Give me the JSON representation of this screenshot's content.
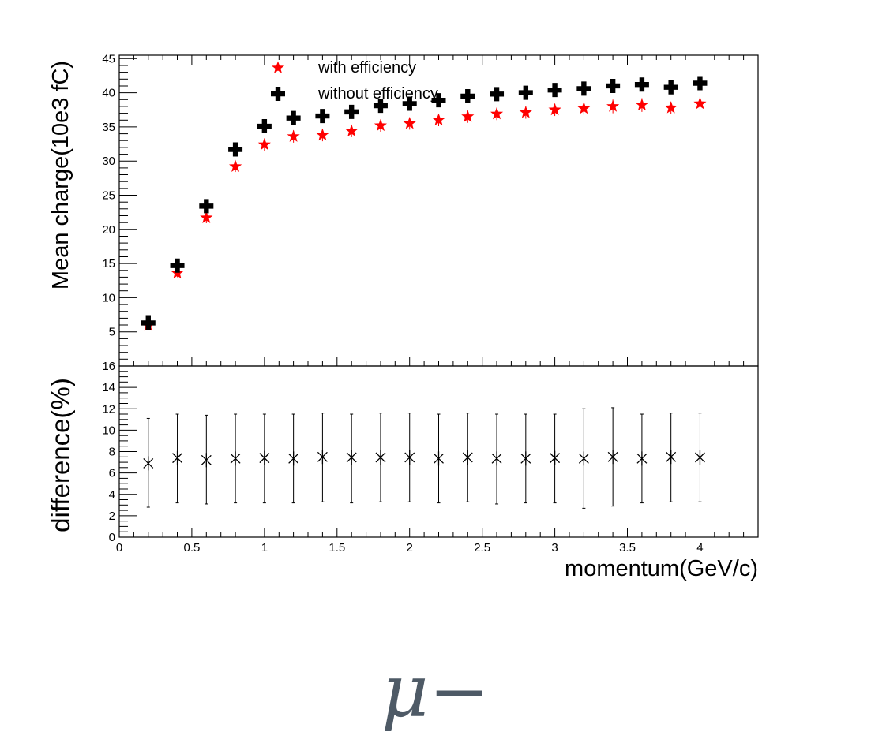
{
  "chart_data": [
    {
      "type": "scatter",
      "ylabel": "Mean charge(10e3 fC)",
      "xlim": [
        0,
        4.4
      ],
      "ylim": [
        0,
        45.5
      ],
      "yticks": [
        5,
        10,
        15,
        20,
        25,
        30,
        35,
        40,
        45
      ],
      "legend": {
        "placement": "top-center"
      },
      "series": [
        {
          "name": "with efficiency",
          "color": "#ff0000",
          "marker": "star",
          "x": [
            0.2,
            0.4,
            0.6,
            0.8,
            1.0,
            1.2,
            1.4,
            1.6,
            1.8,
            2.0,
            2.2,
            2.4,
            2.6,
            2.8,
            3.0,
            3.2,
            3.4,
            3.6,
            3.8,
            4.0
          ],
          "y": [
            5.9,
            13.6,
            21.7,
            29.2,
            32.4,
            33.6,
            33.8,
            34.4,
            35.2,
            35.5,
            36.0,
            36.5,
            36.9,
            37.1,
            37.5,
            37.7,
            38.0,
            38.2,
            37.8,
            38.4
          ],
          "yerr": [
            0.4,
            0.6,
            0.8,
            0.8,
            0.9,
            0.9,
            0.9,
            0.9,
            0.9,
            0.9,
            0.9,
            0.9,
            0.9,
            0.9,
            0.9,
            0.9,
            1.0,
            1.0,
            0.9,
            1.0
          ]
        },
        {
          "name": "without efficiency",
          "color": "#000000",
          "marker": "cross",
          "x": [
            0.2,
            0.4,
            0.6,
            0.8,
            1.0,
            1.2,
            1.4,
            1.6,
            1.8,
            2.0,
            2.2,
            2.4,
            2.6,
            2.8,
            3.0,
            3.2,
            3.4,
            3.6,
            3.8,
            4.0
          ],
          "y": [
            6.3,
            14.7,
            23.4,
            31.7,
            35.1,
            36.3,
            36.6,
            37.2,
            38.1,
            38.4,
            38.9,
            39.5,
            39.8,
            40.0,
            40.4,
            40.6,
            41.0,
            41.2,
            40.8,
            41.4
          ],
          "yerr": [
            0.4,
            0.6,
            0.8,
            0.8,
            0.9,
            0.9,
            0.9,
            0.9,
            0.9,
            0.9,
            0.9,
            0.9,
            0.9,
            0.9,
            0.9,
            0.9,
            1.0,
            1.0,
            0.9,
            1.0
          ]
        }
      ]
    },
    {
      "type": "scatter",
      "xlabel": "momentum(GeV/c)",
      "ylabel": "difference(%)",
      "xlim": [
        0,
        4.4
      ],
      "ylim": [
        0,
        16
      ],
      "xticks": [
        0,
        0.5,
        1,
        1.5,
        2,
        2.5,
        3,
        3.5,
        4
      ],
      "xtick_labels": [
        "0",
        "0.5",
        "1",
        "1.5",
        "2",
        "2.5",
        "3",
        "3.5",
        "4"
      ],
      "yticks": [
        0,
        2,
        4,
        6,
        8,
        10,
        12,
        14,
        16
      ],
      "series": [
        {
          "color": "#000000",
          "marker": "asterisk",
          "x": [
            0.2,
            0.4,
            0.6,
            0.8,
            1.0,
            1.2,
            1.4,
            1.6,
            1.8,
            2.0,
            2.2,
            2.4,
            2.6,
            2.8,
            3.0,
            3.2,
            3.4,
            3.6,
            3.8,
            4.0
          ],
          "y": [
            6.9,
            7.4,
            7.2,
            7.35,
            7.4,
            7.35,
            7.5,
            7.45,
            7.45,
            7.45,
            7.35,
            7.45,
            7.35,
            7.35,
            7.4,
            7.35,
            7.5,
            7.35,
            7.5,
            7.45
          ],
          "ylow": [
            2.8,
            3.2,
            3.1,
            3.2,
            3.2,
            3.2,
            3.3,
            3.2,
            3.3,
            3.3,
            3.2,
            3.3,
            3.1,
            3.2,
            3.2,
            2.7,
            2.9,
            3.2,
            3.3,
            3.3
          ],
          "yhigh": [
            11.1,
            11.5,
            11.4,
            11.5,
            11.5,
            11.5,
            11.6,
            11.5,
            11.6,
            11.6,
            11.5,
            11.6,
            11.5,
            11.5,
            11.5,
            12.0,
            12.1,
            11.5,
            11.6,
            11.6
          ]
        }
      ]
    }
  ],
  "caption": "μ−"
}
